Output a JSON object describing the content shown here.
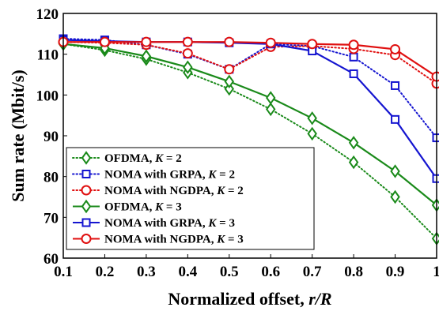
{
  "chart_data": {
    "type": "line",
    "xlabel": "Normalized offset, ",
    "xlabel_var": "r/R",
    "ylabel": "Sum rate (Mbit/s)",
    "xlim": [
      0.1,
      1.0
    ],
    "ylim": [
      60,
      120
    ],
    "x_ticks": [
      "0.1",
      "0.2",
      "0.3",
      "0.4",
      "0.5",
      "0.6",
      "0.7",
      "0.8",
      "0.9",
      "1"
    ],
    "y_ticks": [
      "60",
      "70",
      "80",
      "90",
      "100",
      "110",
      "120"
    ],
    "grid": false,
    "legend_position": "bottom-left",
    "x": [
      0.1,
      0.2,
      0.3,
      0.4,
      0.5,
      0.6,
      0.7,
      0.8,
      0.9,
      1.0
    ],
    "series": [
      {
        "name": "OFDMA, ",
        "k_label": "K",
        "k_value": " = 2",
        "color": "#1a8a1a",
        "style": "dotted",
        "marker": "diamond",
        "values": [
          112.5,
          111.0,
          108.8,
          105.5,
          101.5,
          96.5,
          90.5,
          83.5,
          75.0,
          64.8
        ]
      },
      {
        "name": "NOMA with GRPA, ",
        "k_label": "K",
        "k_value": " = 2",
        "color": "#1515d0",
        "style": "dotted",
        "marker": "square",
        "values": [
          113.8,
          113.5,
          112.3,
          110.0,
          106.3,
          112.5,
          112.0,
          109.3,
          102.3,
          89.5
        ]
      },
      {
        "name": "NOMA with NGDPA, ",
        "k_label": "K",
        "k_value": " = 2",
        "color": "#e01010",
        "style": "dotted",
        "marker": "circle",
        "values": [
          113.0,
          112.8,
          112.3,
          110.2,
          106.3,
          111.8,
          112.0,
          111.3,
          109.8,
          102.8
        ]
      },
      {
        "name": "OFDMA, ",
        "k_label": "K",
        "k_value": " = 3",
        "color": "#1a8a1a",
        "style": "solid",
        "marker": "diamond",
        "values": [
          112.5,
          111.5,
          109.5,
          106.8,
          103.3,
          99.3,
          94.3,
          88.3,
          81.3,
          73.0
        ]
      },
      {
        "name": "NOMA with GRPA, ",
        "k_label": "K",
        "k_value": " = 3",
        "color": "#1515d0",
        "style": "solid",
        "marker": "square",
        "values": [
          113.5,
          113.2,
          113.0,
          113.0,
          112.8,
          112.5,
          110.8,
          105.2,
          94.0,
          79.5
        ]
      },
      {
        "name": "NOMA with NGDPA, ",
        "k_label": "K",
        "k_value": " = 3",
        "color": "#e01010",
        "style": "solid",
        "marker": "circle",
        "values": [
          113.0,
          113.0,
          113.0,
          113.0,
          113.0,
          112.8,
          112.5,
          112.3,
          111.2,
          104.5
        ]
      }
    ]
  }
}
